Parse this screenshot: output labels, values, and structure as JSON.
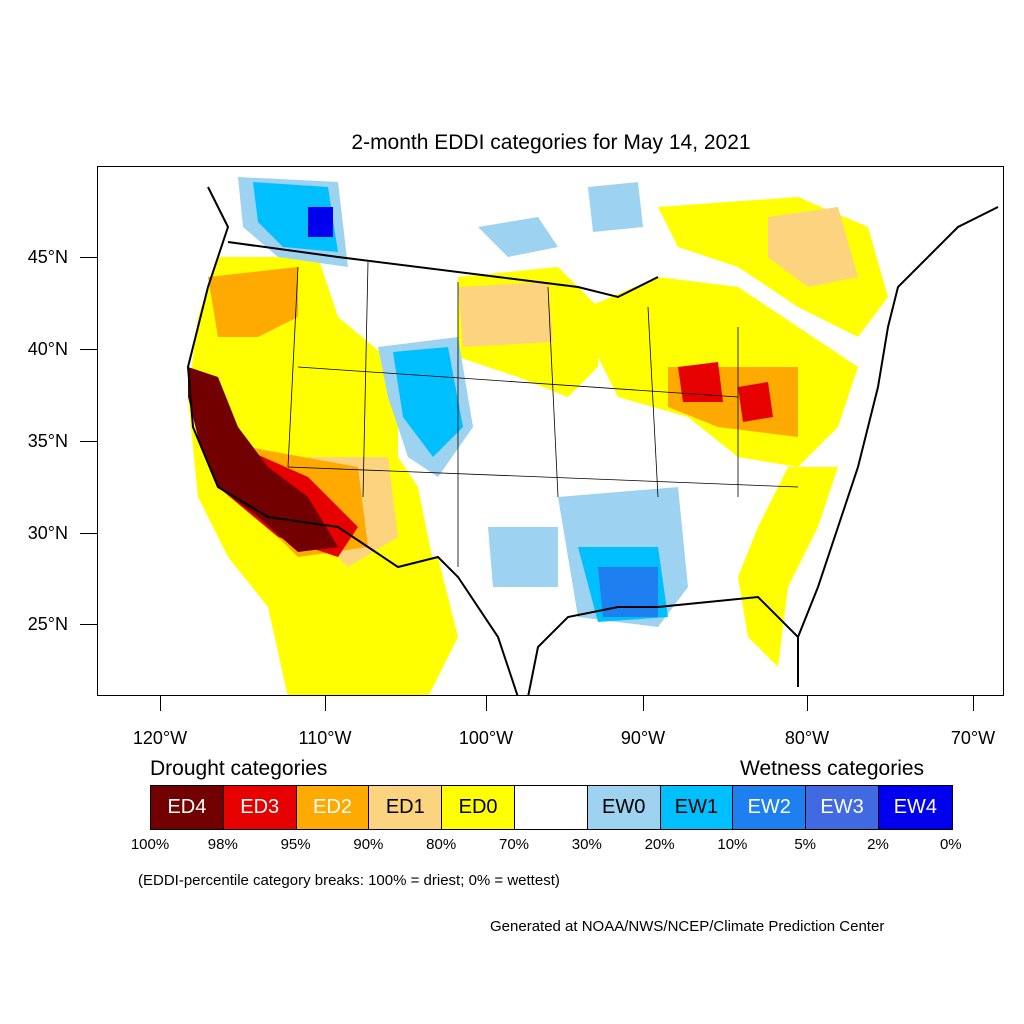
{
  "title": "2-month EDDI categories for May 14, 2021",
  "lat_labels": [
    "45°N",
    "40°N",
    "35°N",
    "30°N",
    "25°N"
  ],
  "lon_labels": [
    "120°W",
    "110°W",
    "100°W",
    "90°W",
    "80°W",
    "70°W"
  ],
  "legend": {
    "drought_heading": "Drought categories",
    "wetness_heading": "Wetness categories",
    "categories": [
      {
        "label": "ED4",
        "color": "#730000",
        "text_color": "#ffffff"
      },
      {
        "label": "ED3",
        "color": "#e60000",
        "text_color": "#ffffff"
      },
      {
        "label": "ED2",
        "color": "#ffaa00",
        "text_color": "#ffffff"
      },
      {
        "label": "ED1",
        "color": "#fcd37f",
        "text_color": "#000000"
      },
      {
        "label": "ED0",
        "color": "#ffff00",
        "text_color": "#000000"
      },
      {
        "label": "",
        "color": "#ffffff",
        "text_color": "#000000"
      },
      {
        "label": "EW0",
        "color": "#9dd2f0",
        "text_color": "#000000"
      },
      {
        "label": "EW1",
        "color": "#00bfff",
        "text_color": "#000000"
      },
      {
        "label": "EW2",
        "color": "#1e7ff0",
        "text_color": "#ffffff"
      },
      {
        "label": "EW3",
        "color": "#4169e1",
        "text_color": "#ffffff"
      },
      {
        "label": "EW4",
        "color": "#0000ee",
        "text_color": "#ffffff"
      }
    ],
    "breaks": [
      "100%",
      "98%",
      "95%",
      "90%",
      "80%",
      "70%",
      "30%",
      "20%",
      "10%",
      "5%",
      "2%",
      "0%"
    ]
  },
  "note": "(EDDI-percentile category breaks: 100% = driest; 0% = wettest)",
  "credit": "Generated at NOAA/NWS/NCEP/Climate Prediction Center"
}
